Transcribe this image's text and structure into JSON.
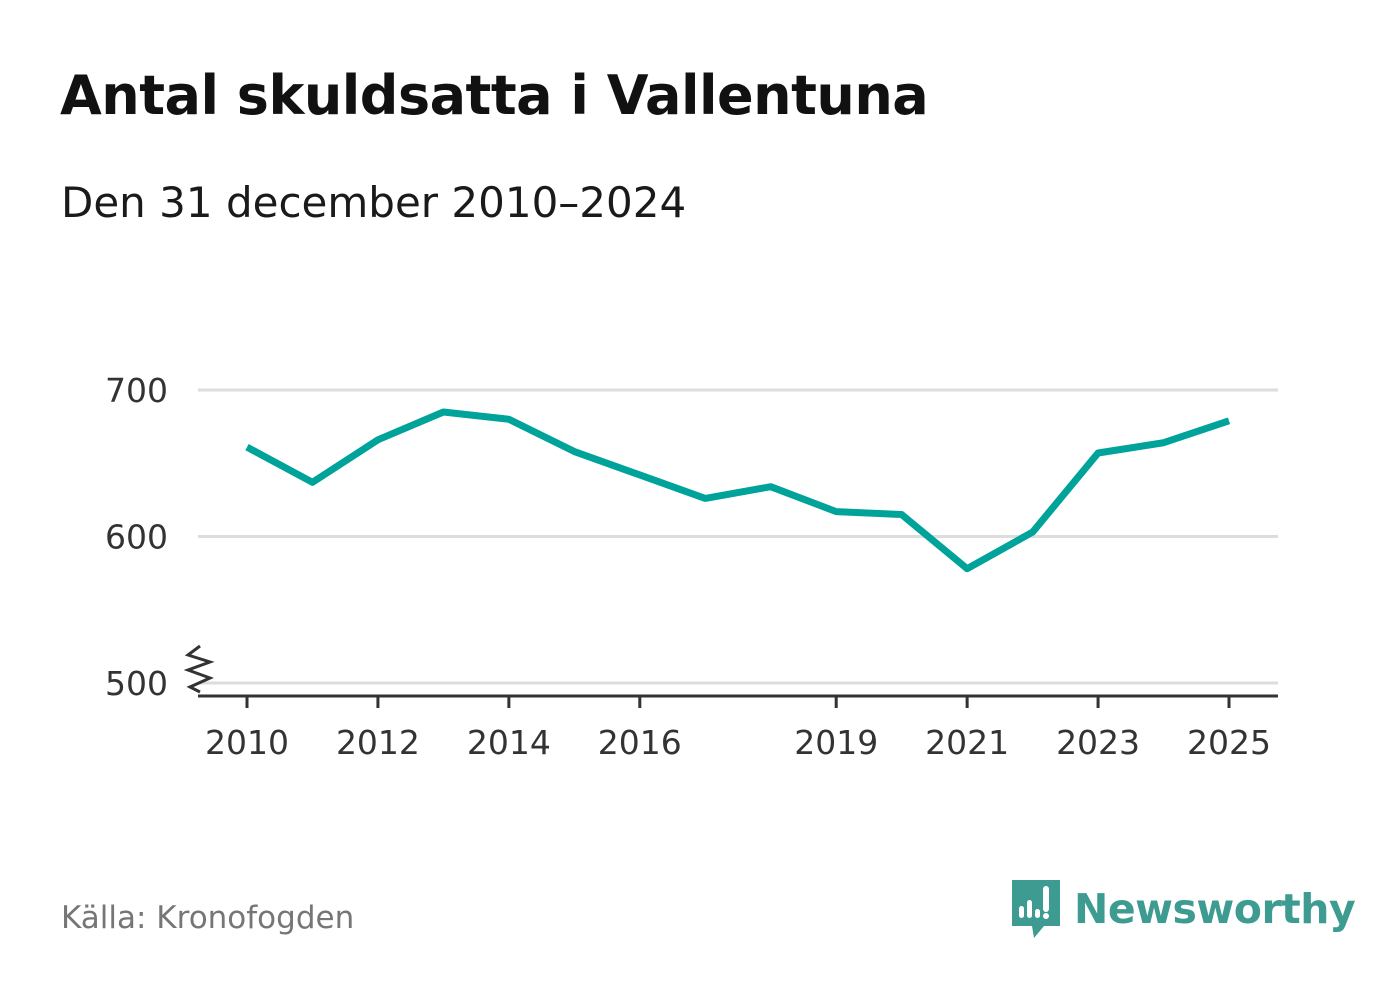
{
  "title": "Antal skuldsatta i Vallentuna",
  "subtitle": "Den 31 december 2010–2024",
  "source": "Källa: Kronofogden",
  "brand": {
    "name": "Newsworthy",
    "color": "#3d9b91",
    "icon": "bar-chart-speech-bubble-icon"
  },
  "colors": {
    "line": "#00a39a",
    "grid": "#dddddd",
    "axis": "#333333"
  },
  "chart_data": {
    "type": "line",
    "title": "Antal skuldsatta i Vallentuna",
    "subtitle": "Den 31 december 2010–2024",
    "xlabel": "",
    "ylabel": "",
    "x": [
      2010,
      2011,
      2012,
      2013,
      2014,
      2015,
      2016,
      2017,
      2018,
      2019,
      2020,
      2021,
      2022,
      2023,
      2024,
      2025
    ],
    "series": [
      {
        "name": "Antal skuldsatta",
        "values": [
          661,
          637,
          666,
          685,
          680,
          658,
          642,
          626,
          634,
          617,
          615,
          578,
          603,
          657,
          664,
          679
        ]
      }
    ],
    "xlim": [
      2009.25,
      2025.75
    ],
    "ylim": [
      493,
      700
    ],
    "y_axis_break": true,
    "x_ticks": [
      2010,
      2012,
      2014,
      2016,
      2019,
      2021,
      2023,
      2025
    ],
    "x_tick_labels": [
      "2010",
      "2012",
      "2014",
      "2016",
      "2019",
      "2021",
      "2023",
      "2025"
    ],
    "y_ticks": [
      500,
      600,
      700
    ],
    "y_tick_labels": [
      "500",
      "600",
      "700"
    ],
    "grid": true,
    "legend": "none"
  }
}
